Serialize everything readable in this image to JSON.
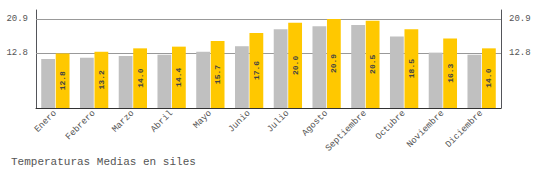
{
  "chart_data": {
    "type": "bar",
    "title": "Temperaturas Medias en siles",
    "categories": [
      "Enero",
      "Febrero",
      "Marzo",
      "Abril",
      "Mayo",
      "Junio",
      "Julio",
      "Agosto",
      "Septiembre",
      "Octubre",
      "Noviembre",
      "Diciembre"
    ],
    "series": [
      {
        "color": "#C0C0C0",
        "values": [
          11.5,
          11.8,
          12.2,
          12.5,
          13.2,
          14.5,
          18.5,
          19.2,
          19.5,
          16.8,
          13.0,
          12.5
        ]
      },
      {
        "color": "#FFC800",
        "values": [
          12.8,
          13.2,
          14.0,
          14.4,
          15.7,
          17.6,
          20.0,
          20.9,
          20.5,
          18.5,
          16.3,
          14.0
        ],
        "data_labels": true,
        "value_labels": [
          "12.8",
          "13.2",
          "14.0",
          "14.4",
          "15.7",
          "17.6",
          "20.0",
          "20.9",
          "20.5",
          "18.5",
          "16.3",
          "14.0"
        ]
      }
    ],
    "ylim": [
      0,
      23.0
    ],
    "yticks": [
      12.8,
      20.9
    ],
    "y2lim": [
      0,
      23.0
    ],
    "y2ticks": [
      12.8,
      20.9
    ],
    "grid": true
  }
}
